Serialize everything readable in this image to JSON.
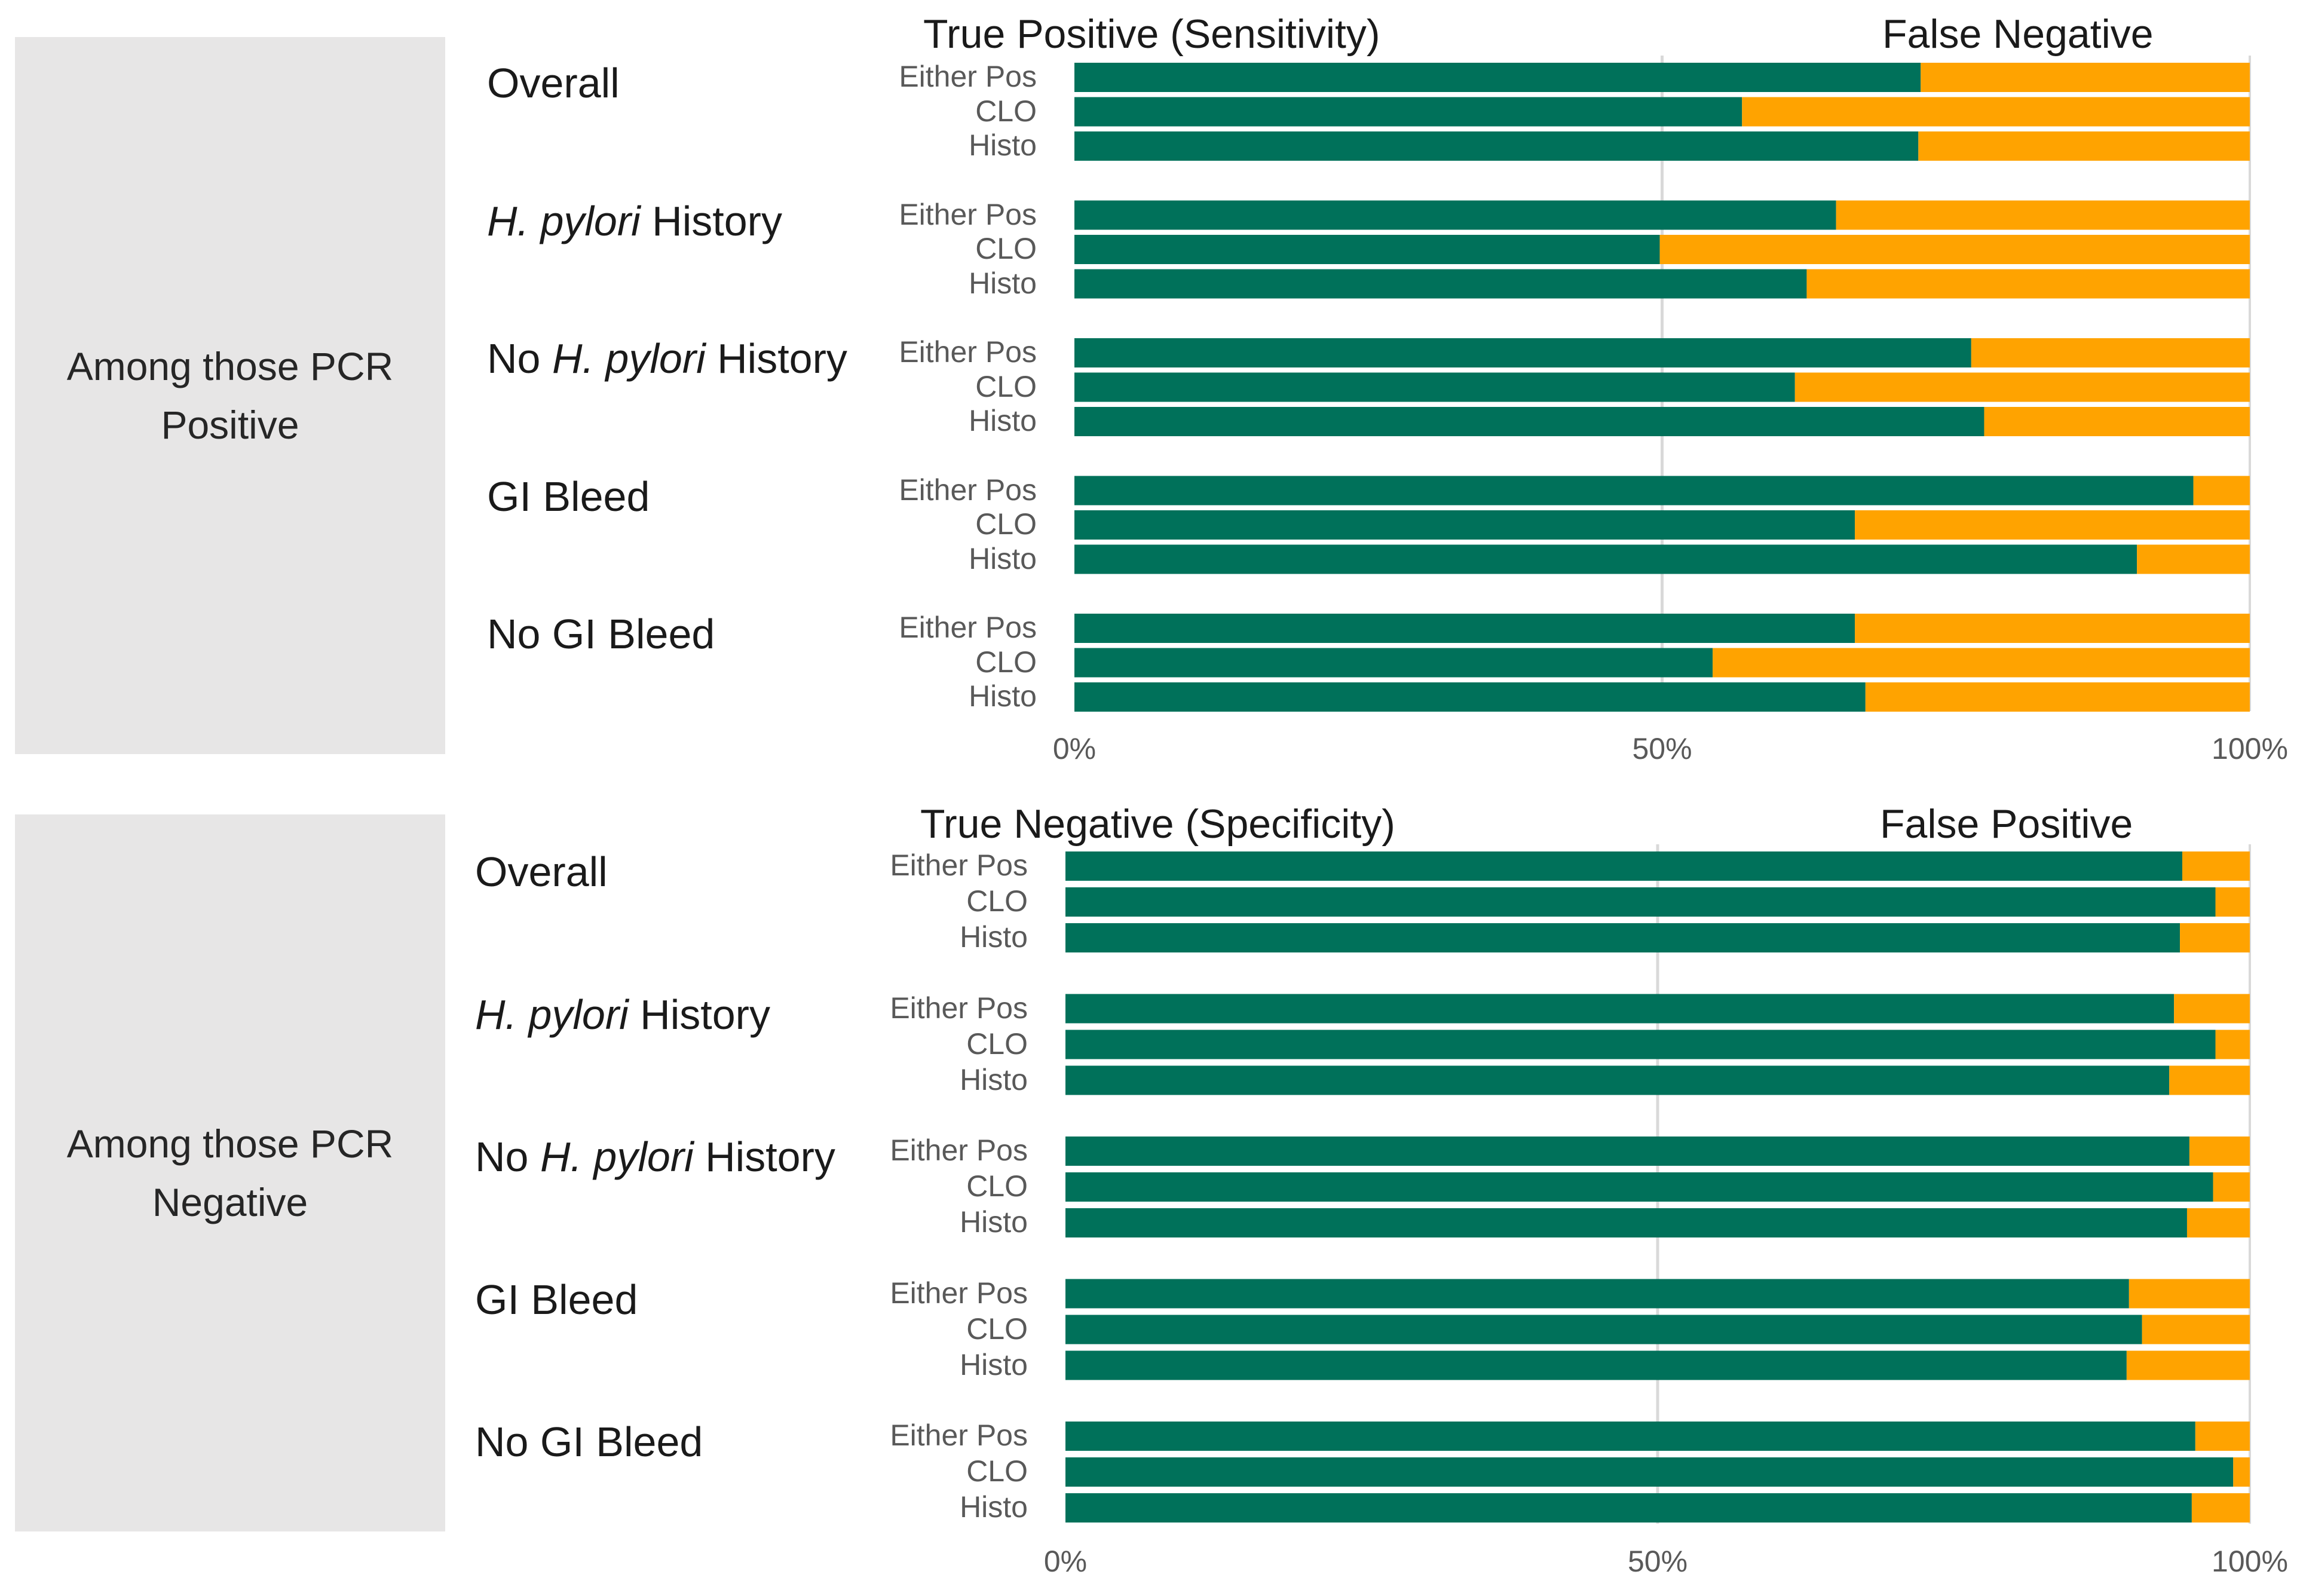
{
  "chart_data": [
    {
      "type": "bar",
      "orientation": "horizontal",
      "stacked": true,
      "panel_label": "Among those PCR Positive",
      "series_names": [
        "True Positive (Sensitivity)",
        "False Negative"
      ],
      "colors": [
        "#00715a",
        "#ffa300"
      ],
      "xlim": [
        0,
        100
      ],
      "x_ticks": [
        "0%",
        "50%",
        "100%"
      ],
      "groups": [
        {
          "label": "Overall",
          "label_parts": [
            {
              "text": "Overall",
              "italic": false
            }
          ],
          "bars": [
            {
              "label": "Either Pos",
              "value": 72
            },
            {
              "label": "CLO",
              "value": 56.8
            },
            {
              "label": "Histo",
              "value": 71.8
            }
          ]
        },
        {
          "label": "H. pylori History",
          "label_parts": [
            {
              "text": "H. pylori",
              "italic": true
            },
            {
              "text": " History",
              "italic": false
            }
          ],
          "bars": [
            {
              "label": "Either Pos",
              "value": 64.8
            },
            {
              "label": "CLO",
              "value": 49.8
            },
            {
              "label": "Histo",
              "value": 62.3
            }
          ]
        },
        {
          "label": "No H. pylori History",
          "label_parts": [
            {
              "text": "No ",
              "italic": false
            },
            {
              "text": "H. pylori",
              "italic": true
            },
            {
              "text": " History",
              "italic": false
            }
          ],
          "bars": [
            {
              "label": "Either Pos",
              "value": 76.3
            },
            {
              "label": "CLO",
              "value": 61.3
            },
            {
              "label": "Histo",
              "value": 77.4
            }
          ]
        },
        {
          "label": "GI Bleed",
          "label_parts": [
            {
              "text": "GI Bleed",
              "italic": false
            }
          ],
          "bars": [
            {
              "label": "Either Pos",
              "value": 95.2
            },
            {
              "label": "CLO",
              "value": 66.4
            },
            {
              "label": "Histo",
              "value": 90.4
            }
          ]
        },
        {
          "label": "No GI Bleed",
          "label_parts": [
            {
              "text": "No GI Bleed",
              "italic": false
            }
          ],
          "bars": [
            {
              "label": "Either Pos",
              "value": 66.4
            },
            {
              "label": "CLO",
              "value": 54.3
            },
            {
              "label": "Histo",
              "value": 67.3
            }
          ]
        }
      ]
    },
    {
      "type": "bar",
      "orientation": "horizontal",
      "stacked": true,
      "panel_label": "Among those PCR Negative",
      "series_names": [
        "True Negative (Specificity)",
        "False Positive"
      ],
      "colors": [
        "#00715a",
        "#ffa300"
      ],
      "xlim": [
        0,
        100
      ],
      "x_ticks": [
        "0%",
        "50%",
        "100%"
      ],
      "groups": [
        {
          "label": "Overall",
          "label_parts": [
            {
              "text": "Overall",
              "italic": false
            }
          ],
          "bars": [
            {
              "label": "Either Pos",
              "value": 94.3
            },
            {
              "label": "CLO",
              "value": 97.1
            },
            {
              "label": "Histo",
              "value": 94.1
            }
          ]
        },
        {
          "label": "H. pylori History",
          "label_parts": [
            {
              "text": "H. pylori",
              "italic": true
            },
            {
              "text": " History",
              "italic": false
            }
          ],
          "bars": [
            {
              "label": "Either Pos",
              "value": 93.6
            },
            {
              "label": "CLO",
              "value": 97.1
            },
            {
              "label": "Histo",
              "value": 93.2
            }
          ]
        },
        {
          "label": "No H. pylori History",
          "label_parts": [
            {
              "text": "No ",
              "italic": false
            },
            {
              "text": "H. pylori",
              "italic": true
            },
            {
              "text": " History",
              "italic": false
            }
          ],
          "bars": [
            {
              "label": "Either Pos",
              "value": 94.9
            },
            {
              "label": "CLO",
              "value": 96.9
            },
            {
              "label": "Histo",
              "value": 94.7
            }
          ]
        },
        {
          "label": "GI Bleed",
          "label_parts": [
            {
              "text": "GI Bleed",
              "italic": false
            }
          ],
          "bars": [
            {
              "label": "Either Pos",
              "value": 89.8
            },
            {
              "label": "CLO",
              "value": 90.9
            },
            {
              "label": "Histo",
              "value": 89.6
            }
          ]
        },
        {
          "label": "No GI Bleed",
          "label_parts": [
            {
              "text": "No GI Bleed",
              "italic": false
            }
          ],
          "bars": [
            {
              "label": "Either Pos",
              "value": 95.4
            },
            {
              "label": "CLO",
              "value": 98.6
            },
            {
              "label": "Histo",
              "value": 95.1
            }
          ]
        }
      ]
    }
  ]
}
